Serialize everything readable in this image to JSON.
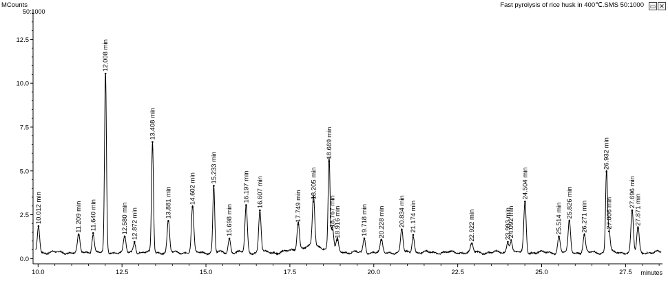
{
  "header": {
    "y_unit": "MCounts",
    "ion_range": "50:1000",
    "title": "Fast pyrolysis of rice husk in 400℃.SMS 50:1000"
  },
  "controls": {
    "restore_glyph": "▭",
    "close_glyph": "✕"
  },
  "chart_data": {
    "type": "line",
    "title": "Fast pyrolysis of rice husk in 400℃.SMS 50:1000",
    "xlabel": "minutes",
    "ylabel": "MCounts",
    "xlim": [
      9.85,
      28.6
    ],
    "ylim": [
      -0.3,
      14.2
    ],
    "xticks": [
      10.0,
      12.5,
      15.0,
      17.5,
      20.0,
      22.5,
      25.0,
      27.5
    ],
    "xtick_labels": [
      "10.0",
      "12.5",
      "15.0",
      "17.5",
      "20.0",
      "22.5",
      "25.0",
      "27.5"
    ],
    "yticks": [
      0.0,
      2.5,
      5.0,
      7.5,
      10.0,
      12.5
    ],
    "ytick_labels": [
      "0.0",
      "2.5",
      "5.0",
      "7.5",
      "10.0",
      "12.5"
    ],
    "baseline": 0.35,
    "line_color": "#000000",
    "grid": false,
    "peaks": [
      {
        "rt": 10.012,
        "height": 1.5,
        "label": "10.012 min"
      },
      {
        "rt": 11.209,
        "height": 1.0,
        "label": "11.209 min"
      },
      {
        "rt": 11.64,
        "height": 1.1,
        "label": "11.640 min"
      },
      {
        "rt": 12.008,
        "height": 10.2,
        "label": "12.008 min"
      },
      {
        "rt": 12.58,
        "height": 0.9,
        "label": "12.580 min"
      },
      {
        "rt": 12.872,
        "height": 0.6,
        "label": "12.872 min"
      },
      {
        "rt": 13.408,
        "height": 6.3,
        "label": "13.408 min"
      },
      {
        "rt": 13.881,
        "height": 1.8,
        "label": "13.881 min"
      },
      {
        "rt": 14.602,
        "height": 2.6,
        "label": "14.602 min"
      },
      {
        "rt": 15.233,
        "height": 3.8,
        "label": "15.233 min"
      },
      {
        "rt": 15.698,
        "height": 0.8,
        "label": "15.698 min"
      },
      {
        "rt": 16.197,
        "height": 2.7,
        "label": "16.197 min"
      },
      {
        "rt": 16.607,
        "height": 2.4,
        "label": "16.607 min"
      },
      {
        "rt": 17.749,
        "height": 1.6,
        "label": "17.749 min"
      },
      {
        "rt": 18.205,
        "height": 2.9,
        "label": "18.205 min"
      },
      {
        "rt": 18.669,
        "height": 5.2,
        "label": "18.669 min"
      },
      {
        "rt": 18.767,
        "height": 1.3,
        "label": "18.767 min"
      },
      {
        "rt": 18.916,
        "height": 0.7,
        "label": "18.916 min"
      },
      {
        "rt": 19.718,
        "height": 0.8,
        "label": "19.718 min"
      },
      {
        "rt": 20.228,
        "height": 0.7,
        "label": "20.228 min"
      },
      {
        "rt": 20.834,
        "height": 1.3,
        "label": "20.834 min"
      },
      {
        "rt": 21.174,
        "height": 1.0,
        "label": "21.174 min"
      },
      {
        "rt": 22.922,
        "height": 0.5,
        "label": "22.922 min"
      },
      {
        "rt": 23.993,
        "height": 0.6,
        "label": "23.993 min"
      },
      {
        "rt": 24.092,
        "height": 0.7,
        "label": "24.092 min"
      },
      {
        "rt": 24.504,
        "height": 2.9,
        "label": "24.504 min"
      },
      {
        "rt": 25.514,
        "height": 0.9,
        "label": "25.514 min"
      },
      {
        "rt": 25.826,
        "height": 1.8,
        "label": "25.826 min"
      },
      {
        "rt": 26.271,
        "height": 1.0,
        "label": "26.271 min"
      },
      {
        "rt": 26.932,
        "height": 4.6,
        "label": "26.932 min"
      },
      {
        "rt": 27.006,
        "height": 1.2,
        "label": "27.006 min"
      },
      {
        "rt": 27.696,
        "height": 2.4,
        "label": "27.696 min"
      },
      {
        "rt": 27.871,
        "height": 1.4,
        "label": "27.871 min"
      }
    ]
  }
}
